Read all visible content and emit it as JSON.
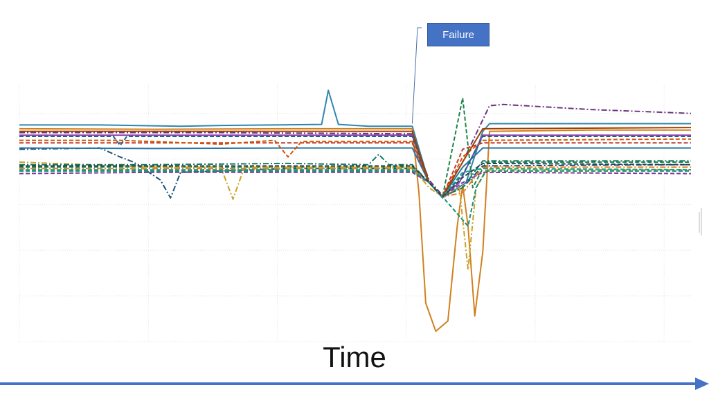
{
  "chart_data": {
    "type": "line",
    "xlabel": "Time",
    "ylabel": "",
    "title": "",
    "xlim": [
      0,
      100
    ],
    "ylim": [
      0,
      100
    ],
    "grid": true,
    "legend": "none",
    "annotation": {
      "text": "Failure",
      "x": 58.5,
      "y": 85
    },
    "series": [
      {
        "color": "#2e86ab",
        "dash": "solid",
        "values": [
          {
            "x": 0,
            "y": 84.5
          },
          {
            "x": 12,
            "y": 84.5
          },
          {
            "x": 24,
            "y": 84.0
          },
          {
            "x": 30,
            "y": 84.3
          },
          {
            "x": 38,
            "y": 84.5
          },
          {
            "x": 45,
            "y": 84.7
          },
          {
            "x": 46,
            "y": 98.0
          },
          {
            "x": 47.5,
            "y": 84.7
          },
          {
            "x": 52,
            "y": 84.0
          },
          {
            "x": 58.5,
            "y": 84.0
          },
          {
            "x": 61,
            "y": 62.0
          },
          {
            "x": 63,
            "y": 56.0
          },
          {
            "x": 66.5,
            "y": 62.0
          },
          {
            "x": 69,
            "y": 82.0
          },
          {
            "x": 70,
            "y": 85.0
          },
          {
            "x": 85,
            "y": 85.0
          },
          {
            "x": 100,
            "y": 85.0
          }
        ]
      },
      {
        "color": "#d1801e",
        "dash": "solid",
        "values": [
          {
            "x": 0,
            "y": 83.0
          },
          {
            "x": 20,
            "y": 82.8
          },
          {
            "x": 40,
            "y": 83.0
          },
          {
            "x": 58.5,
            "y": 83.0
          },
          {
            "x": 59.5,
            "y": 58.0
          },
          {
            "x": 60.5,
            "y": 15.0
          },
          {
            "x": 62,
            "y": 4.0
          },
          {
            "x": 63.8,
            "y": 8.0
          },
          {
            "x": 65.2,
            "y": 45.0
          },
          {
            "x": 66,
            "y": 61.0
          },
          {
            "x": 66.8,
            "y": 45.0
          },
          {
            "x": 67.8,
            "y": 10.0
          },
          {
            "x": 69,
            "y": 35.0
          },
          {
            "x": 70,
            "y": 82.0
          },
          {
            "x": 85,
            "y": 82.5
          },
          {
            "x": 100,
            "y": 82.5
          }
        ]
      },
      {
        "color": "#8e44ad",
        "dash": "solid",
        "values": [
          {
            "x": 0,
            "y": 80.5
          },
          {
            "x": 20,
            "y": 80.5
          },
          {
            "x": 40,
            "y": 80.5
          },
          {
            "x": 58.5,
            "y": 80.5
          },
          {
            "x": 61,
            "y": 62.0
          },
          {
            "x": 63,
            "y": 56.5
          },
          {
            "x": 65.5,
            "y": 62.0
          },
          {
            "x": 69,
            "y": 80.5
          },
          {
            "x": 100,
            "y": 80.5
          }
        ]
      },
      {
        "color": "#6c3483",
        "dash": "dashdot",
        "values": [
          {
            "x": 0,
            "y": 81.5
          },
          {
            "x": 30,
            "y": 81.5
          },
          {
            "x": 58.5,
            "y": 81.0
          },
          {
            "x": 61,
            "y": 63.0
          },
          {
            "x": 63,
            "y": 57.0
          },
          {
            "x": 66,
            "y": 70.0
          },
          {
            "x": 70,
            "y": 92.0
          },
          {
            "x": 72,
            "y": 92.5
          },
          {
            "x": 85,
            "y": 90.5
          },
          {
            "x": 100,
            "y": 89.0
          }
        ]
      },
      {
        "color": "#1e8449",
        "dash": "dashed",
        "values": [
          {
            "x": 0,
            "y": 68.0
          },
          {
            "x": 20,
            "y": 68.2
          },
          {
            "x": 40,
            "y": 68.0
          },
          {
            "x": 58.5,
            "y": 68.0
          },
          {
            "x": 61,
            "y": 62.0
          },
          {
            "x": 63,
            "y": 56.5
          },
          {
            "x": 66,
            "y": 95.0
          },
          {
            "x": 67.5,
            "y": 60.0
          },
          {
            "x": 69.5,
            "y": 70.0
          },
          {
            "x": 100,
            "y": 70.0
          }
        ]
      },
      {
        "color": "#1a5276",
        "dash": "dashdot",
        "values": [
          {
            "x": 0,
            "y": 75.0
          },
          {
            "x": 12,
            "y": 75.5
          },
          {
            "x": 15,
            "y": 72.0
          },
          {
            "x": 17,
            "y": 70.0
          },
          {
            "x": 21,
            "y": 63.0
          },
          {
            "x": 22.5,
            "y": 56.0
          },
          {
            "x": 24,
            "y": 66.0
          },
          {
            "x": 40,
            "y": 67.5
          },
          {
            "x": 58.5,
            "y": 67.5
          },
          {
            "x": 61,
            "y": 62.0
          },
          {
            "x": 63,
            "y": 56.5
          },
          {
            "x": 66,
            "y": 60.0
          },
          {
            "x": 69,
            "y": 68.5
          },
          {
            "x": 100,
            "y": 69.0
          }
        ]
      },
      {
        "color": "#c9a227",
        "dash": "dashdot",
        "values": [
          {
            "x": 0,
            "y": 70.0
          },
          {
            "x": 20,
            "y": 68.0
          },
          {
            "x": 30,
            "y": 68.0
          },
          {
            "x": 31.8,
            "y": 55.5
          },
          {
            "x": 33.5,
            "y": 68.0
          },
          {
            "x": 58.5,
            "y": 68.0
          },
          {
            "x": 61,
            "y": 60.0
          },
          {
            "x": 63,
            "y": 56.5
          },
          {
            "x": 65.5,
            "y": 60.0
          },
          {
            "x": 66.8,
            "y": 28.0
          },
          {
            "x": 68,
            "y": 60.0
          },
          {
            "x": 69.5,
            "y": 67.0
          },
          {
            "x": 100,
            "y": 67.0
          }
        ]
      },
      {
        "color": "#148f77",
        "dash": "dashed",
        "values": [
          {
            "x": 0,
            "y": 66.5
          },
          {
            "x": 20,
            "y": 66.5
          },
          {
            "x": 40,
            "y": 66.5
          },
          {
            "x": 58.5,
            "y": 66.5
          },
          {
            "x": 61,
            "y": 62.0
          },
          {
            "x": 63,
            "y": 56.5
          },
          {
            "x": 66.8,
            "y": 45.0
          },
          {
            "x": 68,
            "y": 60.0
          },
          {
            "x": 69.5,
            "y": 66.5
          },
          {
            "x": 100,
            "y": 66.5
          }
        ]
      },
      {
        "color": "#c0392b",
        "dash": "dashed",
        "values": [
          {
            "x": 0,
            "y": 77.5
          },
          {
            "x": 20,
            "y": 77.5
          },
          {
            "x": 40,
            "y": 77.5
          },
          {
            "x": 58.5,
            "y": 77.5
          },
          {
            "x": 61,
            "y": 62.0
          },
          {
            "x": 63,
            "y": 56.5
          },
          {
            "x": 66,
            "y": 75.0
          },
          {
            "x": 69,
            "y": 77.5
          },
          {
            "x": 100,
            "y": 77.5
          }
        ]
      },
      {
        "color": "#2874a6",
        "dash": "solid",
        "values": [
          {
            "x": 0,
            "y": 75.5
          },
          {
            "x": 20,
            "y": 75.3
          },
          {
            "x": 40,
            "y": 75.5
          },
          {
            "x": 58.5,
            "y": 75.5
          },
          {
            "x": 61,
            "y": 62.0
          },
          {
            "x": 63,
            "y": 56.5
          },
          {
            "x": 66,
            "y": 68.0
          },
          {
            "x": 69,
            "y": 75.5
          },
          {
            "x": 100,
            "y": 75.5
          }
        ]
      },
      {
        "color": "#d35400",
        "dash": "dashed",
        "values": [
          {
            "x": 0,
            "y": 78.5
          },
          {
            "x": 15,
            "y": 78.5
          },
          {
            "x": 30,
            "y": 77.0
          },
          {
            "x": 38,
            "y": 78.5
          },
          {
            "x": 40,
            "y": 72.0
          },
          {
            "x": 42,
            "y": 78.0
          },
          {
            "x": 58.5,
            "y": 78.0
          },
          {
            "x": 61,
            "y": 62.0
          },
          {
            "x": 63,
            "y": 56.5
          },
          {
            "x": 66,
            "y": 72.0
          },
          {
            "x": 69,
            "y": 78.5
          },
          {
            "x": 100,
            "y": 79.0
          }
        ]
      },
      {
        "color": "#7d3c98",
        "dash": "dashed",
        "values": [
          {
            "x": 0,
            "y": 65.5
          },
          {
            "x": 20,
            "y": 66.0
          },
          {
            "x": 40,
            "y": 66.0
          },
          {
            "x": 58.5,
            "y": 66.0
          },
          {
            "x": 61,
            "y": 62.0
          },
          {
            "x": 63,
            "y": 56.5
          },
          {
            "x": 66,
            "y": 62.0
          },
          {
            "x": 69,
            "y": 66.0
          },
          {
            "x": 100,
            "y": 65.5
          }
        ]
      },
      {
        "color": "#117a65",
        "dash": "dashdot",
        "values": [
          {
            "x": 0,
            "y": 69.0
          },
          {
            "x": 20,
            "y": 69.0
          },
          {
            "x": 40,
            "y": 69.5
          },
          {
            "x": 52,
            "y": 69.0
          },
          {
            "x": 53.5,
            "y": 73.0
          },
          {
            "x": 55,
            "y": 69.0
          },
          {
            "x": 58.5,
            "y": 69.0
          },
          {
            "x": 61,
            "y": 62.0
          },
          {
            "x": 63,
            "y": 56.5
          },
          {
            "x": 66,
            "y": 60.0
          },
          {
            "x": 69,
            "y": 70.5
          },
          {
            "x": 100,
            "y": 70.5
          }
        ]
      },
      {
        "color": "#e67e22",
        "dash": "dashdot",
        "values": [
          {
            "x": 0,
            "y": 67.5
          },
          {
            "x": 20,
            "y": 67.5
          },
          {
            "x": 40,
            "y": 67.5
          },
          {
            "x": 58.5,
            "y": 67.5
          },
          {
            "x": 61,
            "y": 62.0
          },
          {
            "x": 63,
            "y": 56.5
          },
          {
            "x": 66,
            "y": 58.0
          },
          {
            "x": 69,
            "y": 68.0
          },
          {
            "x": 100,
            "y": 68.0
          }
        ]
      },
      {
        "color": "#1f618d",
        "dash": "dashed",
        "values": [
          {
            "x": 0,
            "y": 80.0
          },
          {
            "x": 14,
            "y": 80.0
          },
          {
            "x": 15,
            "y": 76.5
          },
          {
            "x": 16,
            "y": 80.0
          },
          {
            "x": 40,
            "y": 80.0
          },
          {
            "x": 58.5,
            "y": 80.0
          },
          {
            "x": 61,
            "y": 62.0
          },
          {
            "x": 63,
            "y": 56.5
          },
          {
            "x": 66,
            "y": 65.0
          },
          {
            "x": 69,
            "y": 80.0
          },
          {
            "x": 100,
            "y": 80.0
          }
        ]
      },
      {
        "color": "#a04000",
        "dash": "solid",
        "values": [
          {
            "x": 0,
            "y": 82.0
          },
          {
            "x": 20,
            "y": 82.0
          },
          {
            "x": 40,
            "y": 82.0
          },
          {
            "x": 58.5,
            "y": 82.0
          },
          {
            "x": 61,
            "y": 62.0
          },
          {
            "x": 63,
            "y": 56.5
          },
          {
            "x": 66,
            "y": 70.0
          },
          {
            "x": 69,
            "y": 83.0
          },
          {
            "x": 100,
            "y": 83.5
          }
        ]
      },
      {
        "color": "#17a589",
        "dash": "dashed",
        "values": [
          {
            "x": 0,
            "y": 67.0
          },
          {
            "x": 20,
            "y": 67.0
          },
          {
            "x": 40,
            "y": 67.0
          },
          {
            "x": 58.5,
            "y": 67.0
          },
          {
            "x": 61,
            "y": 62.0
          },
          {
            "x": 63,
            "y": 56.5
          },
          {
            "x": 66,
            "y": 66.0
          },
          {
            "x": 69,
            "y": 67.5
          },
          {
            "x": 100,
            "y": 67.0
          }
        ]
      },
      {
        "color": "#2e4053",
        "dash": "dashed",
        "values": [
          {
            "x": 0,
            "y": 68.5
          },
          {
            "x": 20,
            "y": 68.5
          },
          {
            "x": 40,
            "y": 68.5
          },
          {
            "x": 58.5,
            "y": 68.5
          },
          {
            "x": 61,
            "y": 62.0
          },
          {
            "x": 63,
            "y": 56.5
          },
          {
            "x": 66,
            "y": 64.0
          },
          {
            "x": 69,
            "y": 69.5
          },
          {
            "x": 100,
            "y": 69.0
          }
        ]
      }
    ]
  }
}
